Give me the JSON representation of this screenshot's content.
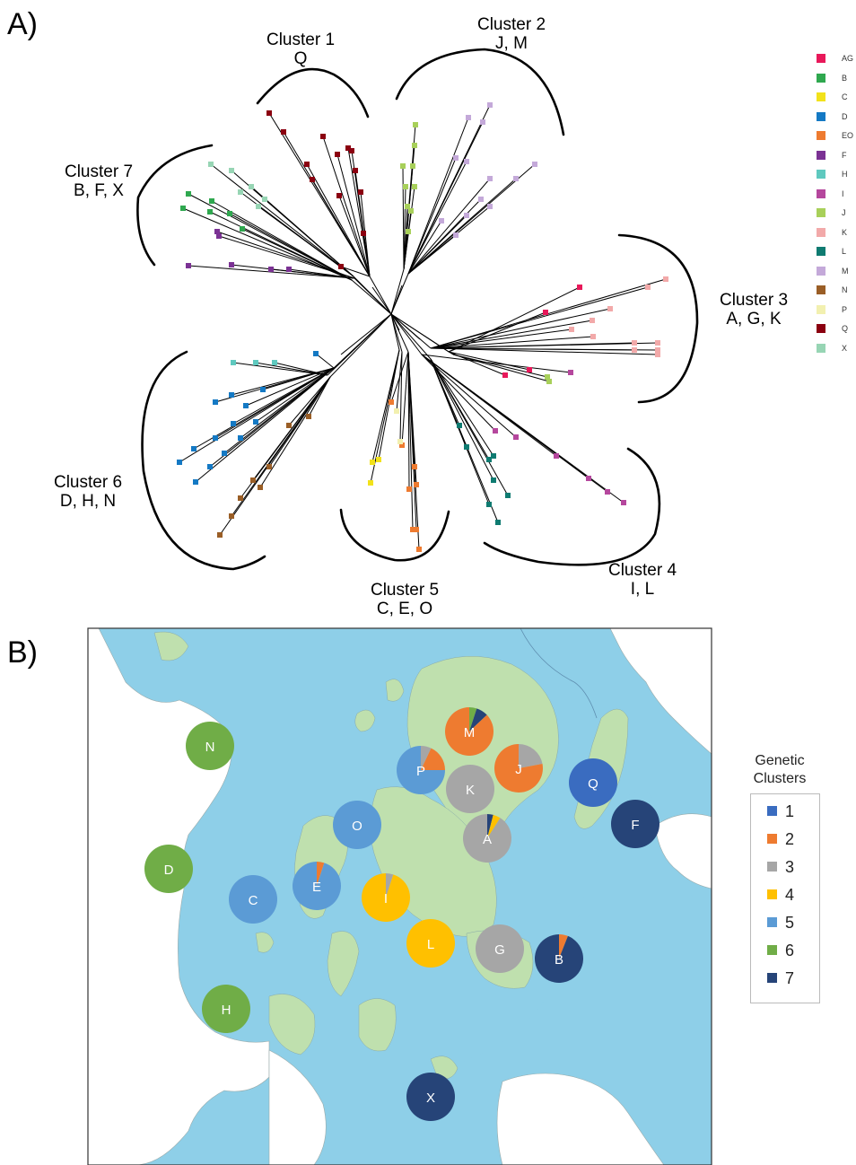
{
  "panel_a": {
    "label": "A)",
    "clusters": [
      {
        "name": "Cluster 1",
        "members": "Q"
      },
      {
        "name": "Cluster 2",
        "members": "J, M"
      },
      {
        "name": "Cluster 3",
        "members": "A, G, K"
      },
      {
        "name": "Cluster 4",
        "members": "I, L"
      },
      {
        "name": "Cluster 5",
        "members": "C, E, O"
      },
      {
        "name": "Cluster 6",
        "members": "D, H, N"
      },
      {
        "name": "Cluster 7",
        "members": "B, F, X"
      }
    ],
    "legend": [
      {
        "label": "AG",
        "color": "#e8185a"
      },
      {
        "label": "B",
        "color": "#2fa84f"
      },
      {
        "label": "C",
        "color": "#f2e21a"
      },
      {
        "label": "D",
        "color": "#1479c4"
      },
      {
        "label": "EO",
        "color": "#ee7b30"
      },
      {
        "label": "F",
        "color": "#7b3294"
      },
      {
        "label": "H",
        "color": "#5fc9bf"
      },
      {
        "label": "I",
        "color": "#b5479d"
      },
      {
        "label": "J",
        "color": "#a8d05a"
      },
      {
        "label": "K",
        "color": "#f2a9a9"
      },
      {
        "label": "L",
        "color": "#0f7b71"
      },
      {
        "label": "M",
        "color": "#c4a9d9"
      },
      {
        "label": "N",
        "color": "#9a5e26"
      },
      {
        "label": "P",
        "color": "#f2f0b0"
      },
      {
        "label": "Q",
        "color": "#8b0010"
      },
      {
        "label": "X",
        "color": "#97d5b4"
      }
    ]
  },
  "panel_b": {
    "label": "B)",
    "legend_title": "Genetic Clusters",
    "legend": [
      {
        "label": "1",
        "color": "#3a6cc0"
      },
      {
        "label": "2",
        "color": "#ee7b30"
      },
      {
        "label": "3",
        "color": "#a6a6a6"
      },
      {
        "label": "4",
        "color": "#ffc000"
      },
      {
        "label": "5",
        "color": "#5b9bd5"
      },
      {
        "label": "6",
        "color": "#70ad47"
      },
      {
        "label": "7",
        "color": "#264478"
      }
    ],
    "sites": [
      {
        "id": "N",
        "cluster_shares": [
          0,
          0,
          0,
          0,
          0,
          1,
          0
        ]
      },
      {
        "id": "M",
        "cluster_shares": [
          0,
          0.87,
          0,
          0,
          0,
          0.05,
          0.08
        ]
      },
      {
        "id": "J",
        "cluster_shares": [
          0,
          0.78,
          0.22,
          0,
          0,
          0,
          0
        ]
      },
      {
        "id": "P",
        "cluster_shares": [
          0,
          0.18,
          0.07,
          0,
          0.75,
          0,
          0
        ]
      },
      {
        "id": "K",
        "cluster_shares": [
          0,
          0,
          1,
          0,
          0,
          0,
          0
        ]
      },
      {
        "id": "Q",
        "cluster_shares": [
          1,
          0,
          0,
          0,
          0,
          0,
          0
        ]
      },
      {
        "id": "O",
        "cluster_shares": [
          0,
          0,
          0,
          0,
          1,
          0,
          0
        ]
      },
      {
        "id": "F",
        "cluster_shares": [
          0,
          0,
          0,
          0,
          0,
          0,
          1
        ]
      },
      {
        "id": "A",
        "cluster_shares": [
          0,
          0,
          0.91,
          0.05,
          0,
          0,
          0.04
        ]
      },
      {
        "id": "D",
        "cluster_shares": [
          0,
          0,
          0,
          0,
          0,
          1,
          0
        ]
      },
      {
        "id": "E",
        "cluster_shares": [
          0,
          0.05,
          0,
          0,
          0.95,
          0,
          0
        ]
      },
      {
        "id": "I",
        "cluster_shares": [
          0,
          0,
          0.05,
          0.95,
          0,
          0,
          0
        ]
      },
      {
        "id": "C",
        "cluster_shares": [
          0,
          0,
          0,
          0,
          1,
          0,
          0
        ]
      },
      {
        "id": "L",
        "cluster_shares": [
          0,
          0,
          0,
          1,
          0,
          0,
          0
        ]
      },
      {
        "id": "G",
        "cluster_shares": [
          0,
          0,
          1,
          0,
          0,
          0,
          0
        ]
      },
      {
        "id": "B",
        "cluster_shares": [
          0,
          0.06,
          0,
          0,
          0,
          0,
          0.94
        ]
      },
      {
        "id": "H",
        "cluster_shares": [
          0,
          0,
          0,
          0,
          0,
          1,
          0
        ]
      },
      {
        "id": "X",
        "cluster_shares": [
          0,
          0,
          0,
          0,
          0,
          0,
          1
        ]
      }
    ]
  }
}
